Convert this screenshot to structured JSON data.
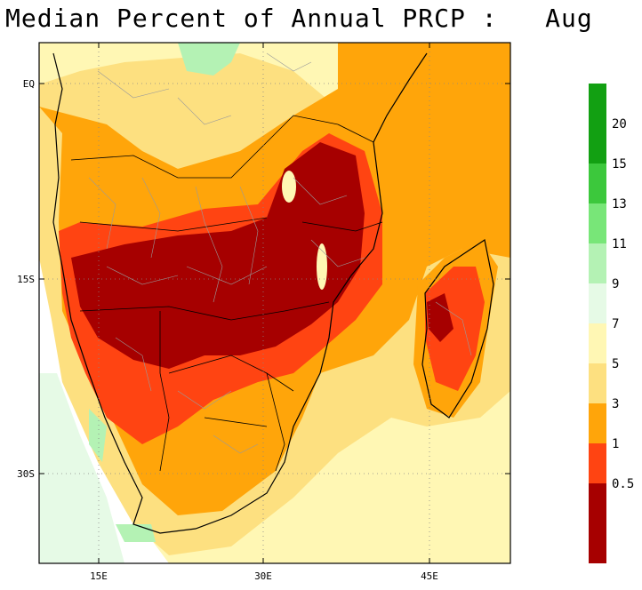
{
  "title": "Median Percent of Annual PRCP :   Aug",
  "lat_labels": [
    "EQ",
    "15S",
    "30S"
  ],
  "lon_labels": [
    "15E",
    "30E",
    "45E"
  ],
  "colorbar": {
    "upper": [
      {
        "label": "20",
        "color": "#12a012"
      },
      {
        "label": "15",
        "color": "#3cc83c"
      },
      {
        "label": "13",
        "color": "#78e678"
      },
      {
        "label": "11",
        "color": "#b4f2b4"
      },
      {
        "label": "9",
        "color": "#e6fae6"
      }
    ],
    "top_swatch": "#12a012",
    "lower": [
      {
        "label": "7",
        "color": "#fff7b4"
      },
      {
        "label": "5",
        "color": "#fde080"
      },
      {
        "label": "3",
        "color": "#ffa50a"
      },
      {
        "label": "1",
        "color": "#ff4412"
      },
      {
        "label": "0.5",
        "color": "#a60000"
      }
    ],
    "bottom_swatch": "#a60000"
  },
  "colors": {
    "ocean_green": "#e6fae6",
    "pale_yellow": "#fff7b4",
    "light_orange": "#fde080",
    "orange": "#ffa50a",
    "red": "#ff4412",
    "dark_red": "#a60000"
  }
}
